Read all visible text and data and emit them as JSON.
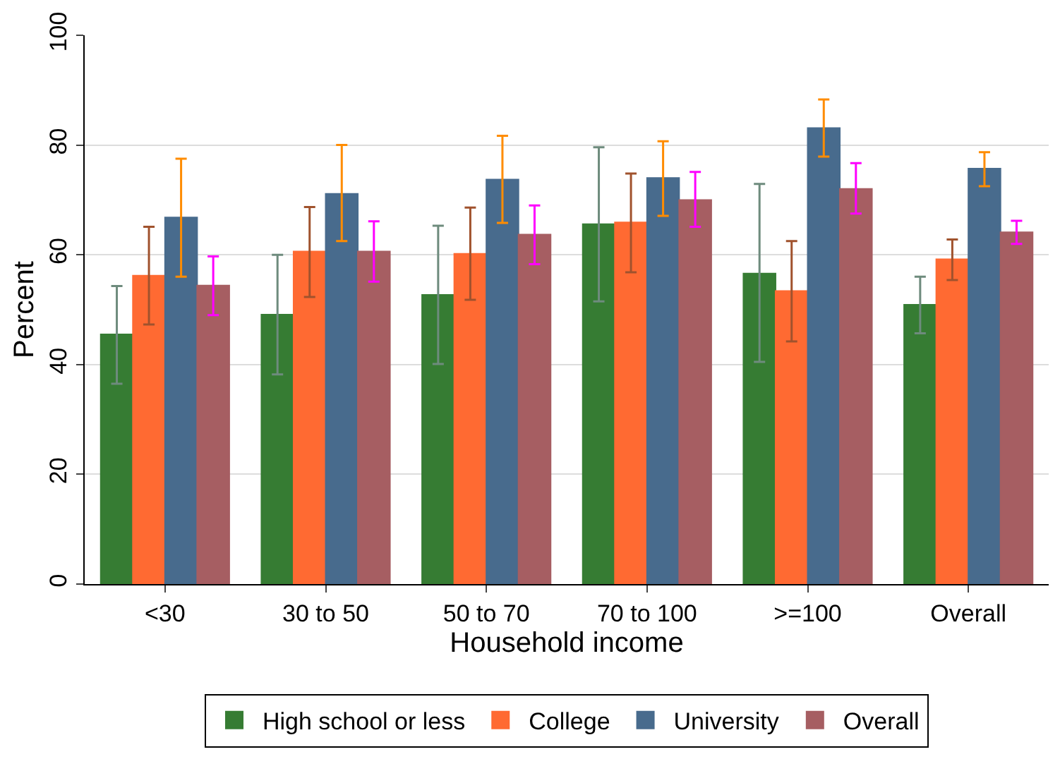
{
  "chart_data": {
    "type": "bar",
    "xlabel": "Household income",
    "ylabel": "Percent",
    "categories": [
      "<30",
      "30 to 50",
      "50 to 70",
      "70 to 100",
      ">=100",
      "Overall"
    ],
    "ylim": [
      0,
      100
    ],
    "yticks": [
      0,
      20,
      40,
      60,
      80,
      100
    ],
    "grid": "y",
    "legend": "bottom",
    "series": [
      {
        "name": "High school or less",
        "color": "#367c33",
        "values": [
          45.5,
          49.1,
          52.7,
          65.6,
          56.6,
          50.9
        ],
        "errors": [
          [
            36.5,
            54.3
          ],
          [
            38.2,
            60.0
          ],
          [
            40.1,
            65.3
          ],
          [
            51.5,
            79.6
          ],
          [
            40.5,
            72.9
          ],
          [
            45.7,
            56.0
          ]
        ]
      },
      {
        "name": "College",
        "color": "#ff6a32",
        "values": [
          56.2,
          60.6,
          60.2,
          65.9,
          53.4,
          59.2
        ],
        "errors": [
          [
            47.3,
            65.1
          ],
          [
            52.3,
            68.7
          ],
          [
            51.8,
            68.6
          ],
          [
            56.8,
            74.8
          ],
          [
            44.2,
            62.5
          ],
          [
            55.4,
            62.8
          ]
        ]
      },
      {
        "name": "University",
        "color": "#486b8d",
        "values": [
          66.8,
          71.1,
          73.7,
          74.0,
          83.1,
          75.7
        ],
        "errors": [
          [
            56.0,
            77.5
          ],
          [
            62.5,
            80.0
          ],
          [
            65.8,
            81.7
          ],
          [
            67.1,
            80.7
          ],
          [
            77.9,
            88.3
          ],
          [
            72.5,
            78.7
          ]
        ]
      },
      {
        "name": "Overall",
        "color": "#a65e62",
        "values": [
          54.4,
          60.6,
          63.7,
          70.0,
          72.0,
          64.1
        ],
        "errors": [
          [
            49.0,
            59.7
          ],
          [
            55.1,
            66.1
          ],
          [
            58.3,
            69.0
          ],
          [
            65.1,
            75.1
          ],
          [
            67.5,
            76.7
          ],
          [
            62.0,
            66.2
          ]
        ]
      }
    ]
  }
}
